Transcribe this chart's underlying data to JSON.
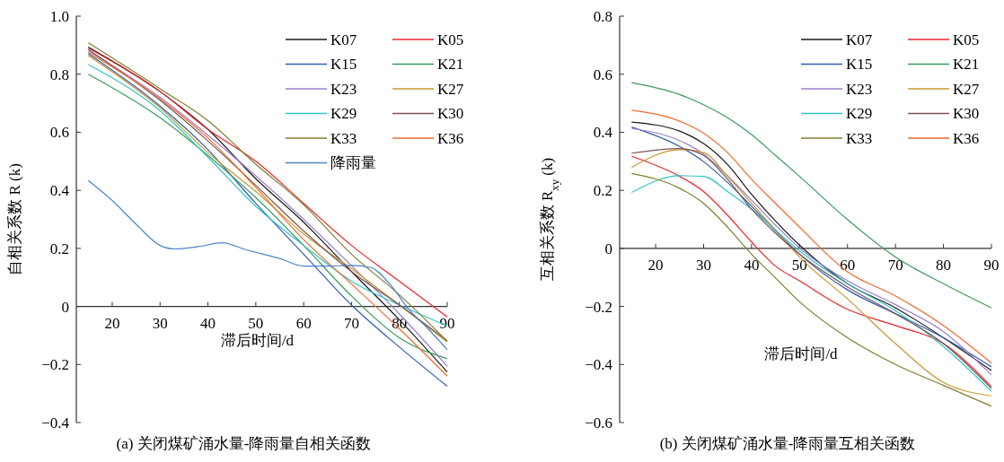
{
  "chart_data": [
    {
      "type": "line",
      "title": "(a) 关闭煤矿涌水量-降雨量自相关函数",
      "xlabel": "滞后时间/d",
      "ylabel": "自相关系数 R (k)",
      "xlim": [
        12.5,
        90
      ],
      "ylim": [
        -0.4,
        1.0
      ],
      "xticks": [
        20,
        30,
        40,
        50,
        60,
        70,
        80,
        90
      ],
      "yticks": [
        {
          "value": 1.0,
          "label": "1.0"
        },
        {
          "value": 0.8,
          "label": "0.8"
        },
        {
          "value": 0.6,
          "label": "0.6"
        },
        {
          "value": 0.4,
          "label": "0.4"
        },
        {
          "value": 0.2,
          "label": "0.2"
        },
        {
          "value": 0,
          "label": "0"
        },
        {
          "value": -0.2,
          "label": "−0.2"
        },
        {
          "value": -0.4,
          "label": "−0.4"
        }
      ],
      "grid": false,
      "legend": "top right",
      "line_style": "solid",
      "x": [
        15,
        30,
        40,
        50,
        60,
        70,
        80,
        90
      ],
      "series": [
        {
          "name": "K07",
          "color": "#1a1a1a",
          "values": [
            0.893,
            0.74,
            0.61,
            0.44,
            0.29,
            0.12,
            -0.046,
            -0.226
          ]
        },
        {
          "name": "K05",
          "color": "#e8262c",
          "values": [
            0.89,
            0.74,
            0.61,
            0.5,
            0.355,
            0.21,
            0.087,
            -0.036
          ]
        },
        {
          "name": "K15",
          "color": "#2f5cb0",
          "values": [
            0.87,
            0.69,
            0.54,
            0.355,
            0.18,
            0.005,
            -0.14,
            -0.275
          ]
        },
        {
          "name": "K21",
          "color": "#3a9a5c",
          "values": [
            0.8,
            0.65,
            0.52,
            0.375,
            0.21,
            0.036,
            -0.108,
            -0.18
          ]
        },
        {
          "name": "K23",
          "color": "#9b7fcc",
          "values": [
            0.88,
            0.72,
            0.59,
            0.45,
            0.3,
            0.14,
            -0.026,
            -0.206
          ]
        },
        {
          "name": "K27",
          "color": "#c9972f",
          "values": [
            0.864,
            0.684,
            0.53,
            0.396,
            0.25,
            0.13,
            0.005,
            -0.123
          ]
        },
        {
          "name": "K29",
          "color": "#33c4c4",
          "values": [
            0.833,
            0.674,
            0.514,
            0.345,
            0.21,
            0.087,
            0.005,
            -0.067
          ]
        },
        {
          "name": "K30",
          "color": "#7a5555",
          "values": [
            0.885,
            0.71,
            0.57,
            0.417,
            0.26,
            0.12,
            0.005,
            -0.118
          ]
        },
        {
          "name": "K33",
          "color": "#7f7f2f",
          "values": [
            0.908,
            0.75,
            0.64,
            0.49,
            0.35,
            0.18,
            0.04,
            -0.12
          ]
        },
        {
          "name": "K36",
          "color": "#f06a2c",
          "values": [
            0.875,
            0.715,
            0.58,
            0.41,
            0.23,
            0.077,
            -0.077,
            -0.24
          ]
        },
        {
          "name": "降雨量",
          "color": "#4a86c8",
          "x": [
            15,
            20,
            25,
            30,
            33,
            38,
            43,
            48,
            55,
            60,
            65,
            70,
            74,
            78,
            82,
            86,
            90
          ],
          "values": [
            0.434,
            0.365,
            0.283,
            0.21,
            0.198,
            0.206,
            0.219,
            0.195,
            0.165,
            0.139,
            0.139,
            0.141,
            0.134,
            0.077,
            -0.01,
            -0.077,
            -0.149
          ]
        }
      ]
    },
    {
      "type": "line",
      "title": "(b) 关闭煤矿涌水量-降雨量互相关函数",
      "xlabel": "滞后时间/d",
      "ylabel": "互相关系数 R$_{xy}$ (k)",
      "xlim": [
        12.5,
        90
      ],
      "ylim": [
        -0.6,
        0.8
      ],
      "xticks": [
        20,
        30,
        40,
        50,
        60,
        70,
        80,
        90
      ],
      "yticks": [
        {
          "value": 0.8,
          "label": "0.8"
        },
        {
          "value": 0.6,
          "label": "0.6"
        },
        {
          "value": 0.4,
          "label": "0.4"
        },
        {
          "value": 0.2,
          "label": "0.2"
        },
        {
          "value": 0,
          "label": "0"
        },
        {
          "value": -0.2,
          "label": "−0.2"
        },
        {
          "value": -0.4,
          "label": "−0.4"
        },
        {
          "value": -0.6,
          "label": "−0.6"
        }
      ],
      "grid": false,
      "legend": "top right",
      "line_style": "solid",
      "x": [
        15,
        25,
        30,
        35,
        40,
        45,
        50,
        60,
        70,
        80,
        90
      ],
      "series": [
        {
          "name": "K07",
          "color": "#1a1a1a",
          "values": [
            0.435,
            0.404,
            0.361,
            0.289,
            0.186,
            0.094,
            0.011,
            -0.122,
            -0.205,
            -0.308,
            -0.421
          ]
        },
        {
          "name": "K05",
          "color": "#e8262c",
          "values": [
            0.317,
            0.248,
            0.196,
            0.114,
            0.022,
            -0.061,
            -0.112,
            -0.21,
            -0.266,
            -0.328,
            -0.477
          ]
        },
        {
          "name": "K15",
          "color": "#2f5cb0",
          "values": [
            0.418,
            0.351,
            0.299,
            0.227,
            0.145,
            0.06,
            -0.02,
            -0.143,
            -0.225,
            -0.308,
            -0.408
          ]
        },
        {
          "name": "K21",
          "color": "#3a9a5c",
          "values": [
            0.571,
            0.53,
            0.495,
            0.45,
            0.392,
            0.32,
            0.248,
            0.099,
            -0.03,
            -0.122,
            -0.205
          ]
        },
        {
          "name": "K23",
          "color": "#9b7fcc",
          "values": [
            0.413,
            0.371,
            0.325,
            0.25,
            0.166,
            0.08,
            0.001,
            -0.112,
            -0.194,
            -0.287,
            -0.436
          ]
        },
        {
          "name": "K27",
          "color": "#c9972f",
          "values": [
            0.279,
            0.34,
            0.33,
            0.248,
            0.155,
            0.063,
            -0.03,
            -0.174,
            -0.328,
            -0.462,
            -0.508
          ]
        },
        {
          "name": "K29",
          "color": "#33c4c4",
          "values": [
            0.193,
            0.25,
            0.248,
            0.196,
            0.135,
            0.063,
            -0.009,
            -0.122,
            -0.215,
            -0.338,
            -0.493
          ]
        },
        {
          "name": "K30",
          "color": "#7a5555",
          "values": [
            0.328,
            0.344,
            0.32,
            0.238,
            0.135,
            0.052,
            -0.02,
            -0.133,
            -0.225,
            -0.328,
            -0.483
          ]
        },
        {
          "name": "K33",
          "color": "#7f7f2f",
          "values": [
            0.258,
            0.207,
            0.155,
            0.073,
            -0.02,
            -0.102,
            -0.184,
            -0.308,
            -0.4,
            -0.472,
            -0.544
          ]
        },
        {
          "name": "K36",
          "color": "#f06a2c",
          "values": [
            0.476,
            0.438,
            0.397,
            0.33,
            0.238,
            0.155,
            0.073,
            -0.081,
            -0.164,
            -0.266,
            -0.395
          ]
        }
      ]
    }
  ]
}
